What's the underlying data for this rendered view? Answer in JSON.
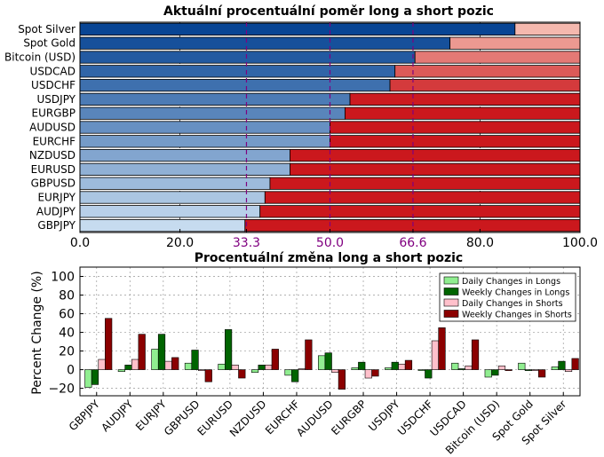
{
  "chart_data": [
    {
      "type": "bar",
      "orientation": "horizontal",
      "stacked": true,
      "title": "Aktuální procentuální poměr long a short pozic",
      "xlim": [
        0,
        100
      ],
      "xticks": [
        "0.0",
        "20.0",
        "33.3",
        "50.0",
        "66.6",
        "80.0",
        "100.0"
      ],
      "reference_lines": [
        33.3,
        50.0,
        66.6
      ],
      "reference_color": "#800080",
      "categories": [
        "Spot Silver",
        "Spot Gold",
        "Bitcoin (USD)",
        "USDCAD",
        "USDCHF",
        "USDJPY",
        "EURGBP",
        "AUDUSD",
        "EURCHF",
        "NZDUSD",
        "EURUSD",
        "GBPUSD",
        "EURJPY",
        "AUDJPY",
        "GBPJPY"
      ],
      "series": [
        {
          "values": [
            87,
            74,
            67,
            63,
            62,
            54,
            53,
            50,
            50,
            42,
            42,
            38,
            37,
            36,
            33
          ]
        },
        {
          "values": [
            13,
            26,
            33,
            37,
            38,
            46,
            47,
            50,
            50,
            58,
            58,
            62,
            63,
            64,
            67
          ]
        }
      ],
      "grid": true
    },
    {
      "type": "bar",
      "title": "Procentuální změna long a short pozic",
      "ylabel": "Percent Change (%)",
      "ylim": [
        -28,
        110
      ],
      "yticks": [
        "100",
        "80",
        "60",
        "40",
        "20",
        "0",
        "−20"
      ],
      "categories": [
        "GBPJPY",
        "AUDJPY",
        "EURJPY",
        "GBPUSD",
        "EURUSD",
        "NZDUSD",
        "EURCHF",
        "AUDUSD",
        "EURGBP",
        "USDJPY",
        "USDCHF",
        "USDCAD",
        "Bitcoin (USD)",
        "Spot Gold",
        "Spot Silver"
      ],
      "series": [
        {
          "name": "Daily Changes in Longs",
          "color": "#90ee90",
          "values": [
            -19,
            -2,
            22,
            7,
            6,
            -3,
            -6,
            15,
            2,
            2,
            -1,
            7,
            -8,
            7,
            3
          ]
        },
        {
          "name": "Weekly Changes in Longs",
          "color": "#006400",
          "values": [
            -16,
            5,
            38,
            21,
            43,
            5,
            -13,
            18,
            8,
            8,
            -9,
            1,
            -6,
            -1,
            9
          ]
        },
        {
          "name": "Daily Changes in Shorts",
          "color": "#ffc0cb",
          "values": [
            11,
            11,
            9,
            -1,
            5,
            5,
            1,
            -3,
            -9,
            6,
            31,
            4,
            4,
            -1,
            -2
          ]
        },
        {
          "name": "Weekly Changes in Shorts",
          "color": "#8b0000",
          "values": [
            55,
            38,
            13,
            -13,
            -9,
            22,
            32,
            -21,
            -7,
            10,
            45,
            32,
            -1,
            -8,
            12
          ]
        }
      ],
      "legend": "top-right",
      "grid": true
    }
  ]
}
